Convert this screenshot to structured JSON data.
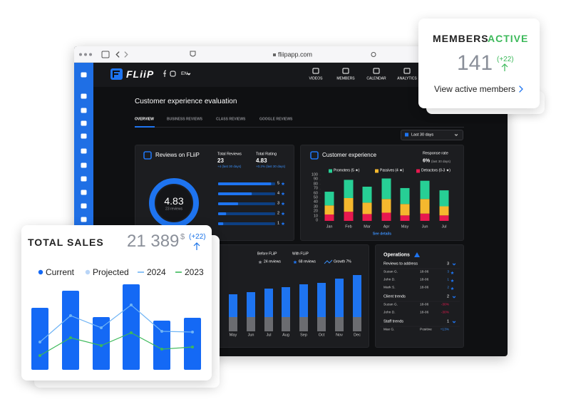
{
  "browser": {
    "url": "fliipapp.com"
  },
  "app": {
    "logo": "FLiiP",
    "language": "EN",
    "nav": [
      "VIDEOS",
      "MEMBERS",
      "CALENDAR",
      "ANALYTICS"
    ]
  },
  "page": {
    "title": "Customer experience evaluation",
    "tabs": [
      "OVERVIEW",
      "BUSINESS REVIEWS",
      "CLASS REVIEWS",
      "GOOGLE REVIEWS"
    ],
    "period": "Last 30 days"
  },
  "reviews": {
    "title": "Reviews on FLiiP",
    "rating": "4.83",
    "reviews_label": "23 reviews",
    "total_reviews_label": "Total Reviews",
    "total_reviews": 23,
    "total_reviews_change": "+4 (last 30 days)",
    "total_rating_label": "Total Rating",
    "total_rating": 4.83,
    "total_rating_change": "+0.2% (last 30 days)",
    "stars": [
      5,
      4,
      3,
      2,
      1
    ],
    "star_share": [
      93,
      59,
      35,
      14,
      9
    ]
  },
  "customer_experience": {
    "type": "bar",
    "stacked": true,
    "title": "Customer experience",
    "response_rate_label": "Response rate",
    "response_rate": "6%",
    "response_rate_period": "(last 30 days)",
    "categories": [
      "Jan",
      "Feb",
      "Mar",
      "Apr",
      "May",
      "Jun",
      "Jul"
    ],
    "series": [
      {
        "name": "Promoters (5 ★)",
        "color": "#27cf95",
        "values": [
          30,
          40,
          35,
          45,
          35,
          40,
          35
        ]
      },
      {
        "name": "Passives (4 ★)",
        "color": "#f5b82e",
        "values": [
          20,
          30,
          25,
          30,
          25,
          32,
          20
        ]
      },
      {
        "name": "Detractors (0-3 ★)",
        "color": "#e8194f",
        "values": [
          14,
          20,
          15,
          18,
          12,
          16,
          12
        ]
      }
    ],
    "ylim": [
      0,
      100
    ],
    "yticks": [
      0,
      10,
      20,
      30,
      40,
      50,
      60,
      70,
      80,
      90,
      100
    ],
    "link": "See details"
  },
  "reviews_growth": {
    "type": "bar",
    "stacked": true,
    "before_label": "Before FLiiP",
    "before_value": "24 reviews",
    "with_label": "With FLiiP",
    "with_value": "68 reviews",
    "growth": "Growth 7%",
    "categories": [
      "May",
      "Jun",
      "Jul",
      "Aug",
      "Sep",
      "Oct",
      "Nov",
      "Dec"
    ],
    "series": [
      {
        "name": "Before FLiiP",
        "color": "#6b6c70",
        "values": [
          20,
          20,
          20,
          20,
          20,
          20,
          20,
          20
        ]
      },
      {
        "name": "With FLiiP",
        "color": "#1e74f0",
        "values": [
          32,
          35,
          40,
          42,
          46,
          48,
          54,
          59
        ]
      }
    ]
  },
  "operations": {
    "title": "Operations",
    "sections": [
      {
        "title": "Reviews to address",
        "count": 3,
        "rows": [
          [
            "Suzan G.",
            "18-06",
            3
          ],
          [
            "John D.",
            "18-06",
            1
          ],
          [
            "Mark S.",
            "18-06",
            2
          ]
        ]
      },
      {
        "title": "Client trends",
        "count": 2,
        "rows": [
          [
            "Suzan G.",
            "18-06",
            "-30%"
          ],
          [
            "John D.",
            "18-06",
            "-30%"
          ]
        ]
      },
      {
        "title": "Staff trends",
        "count": 1,
        "rows": [
          [
            "Max G.",
            "Positive",
            "+13%"
          ]
        ]
      }
    ]
  },
  "members_active": {
    "title_1": "MEMBERS",
    "title_2": "ACTIVE",
    "value": 141,
    "change": "(+22)",
    "link": "View active members"
  },
  "total_sales": {
    "type": "bar",
    "title": "TOTAL SALES",
    "value": "21 389",
    "currency": "$",
    "change": "(+22)",
    "series": [
      {
        "name": "Current",
        "kind": "bar",
        "color": "#1469f5",
        "values": [
          87,
          111,
          74,
          120,
          69,
          73
        ]
      },
      {
        "name": "Projected",
        "kind": "bar",
        "color": "#b9d5f7"
      },
      {
        "name": "2024",
        "kind": "line",
        "color": "#6fb4f5",
        "values": [
          39,
          76,
          59,
          91,
          54,
          53
        ]
      },
      {
        "name": "2023",
        "kind": "line",
        "color": "#3cb95a",
        "values": [
          20,
          45,
          34,
          52,
          29,
          32
        ]
      }
    ]
  }
}
